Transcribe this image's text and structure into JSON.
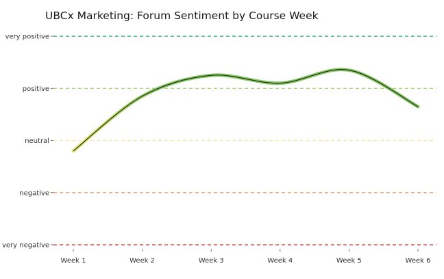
{
  "chart_data": {
    "type": "line",
    "title": "UBCx Marketing: Forum Sentiment by Course Week",
    "xlabel": "",
    "ylabel": "",
    "categories": [
      "Week 1",
      "Week 2",
      "Week 3",
      "Week 4",
      "Week 5",
      "Week 6"
    ],
    "y_levels": [
      {
        "label": "very negative",
        "value": -2,
        "color": "#e0303a"
      },
      {
        "label": "negative",
        "value": -1,
        "color": "#f4a26a"
      },
      {
        "label": "neutral",
        "value": 0,
        "color": "#f2eb9a"
      },
      {
        "label": "positive",
        "value": 1,
        "color": "#9ccf63"
      },
      {
        "label": "very positive",
        "value": 2,
        "color": "#11956b"
      }
    ],
    "ylim": [
      -2,
      2
    ],
    "series": [
      {
        "values": [
          -0.2,
          0.85,
          1.25,
          1.1,
          1.35,
          0.65
        ]
      }
    ],
    "grid": false,
    "legend": "none",
    "colors": {
      "line": "#1f3d12",
      "band_low": "#f2e77a",
      "band_high": "#8cc86a"
    }
  }
}
